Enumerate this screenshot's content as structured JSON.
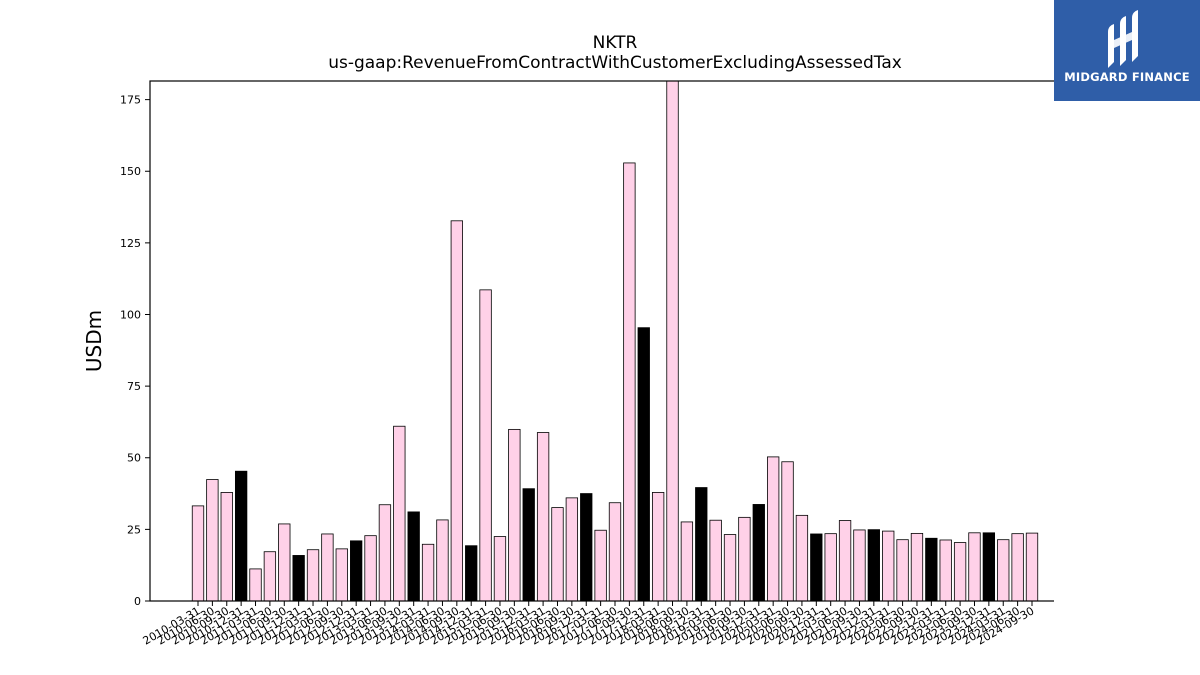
{
  "brand": {
    "name": "MIDGARD FINANCE"
  },
  "chart_data": {
    "type": "bar",
    "title": "NKTR",
    "subtitle": "us-gaap:RevenueFromContractWithCustomerExcludingAssessedTax",
    "ylabel": "USDm",
    "xlabel": "",
    "ylim": [
      0,
      181.5
    ],
    "yticks": [
      0,
      25,
      50,
      75,
      100,
      125,
      150,
      175
    ],
    "grid": false,
    "colors": {
      "quarter": "#ffd1e8",
      "annual": "#000000",
      "edge": "#000000"
    },
    "categories": [
      "2010-03-31",
      "2010-06-30",
      "2010-09-30",
      "2010-12-31",
      "2011-03-31",
      "2011-06-30",
      "2011-09-30",
      "2011-12-31",
      "2012-03-31",
      "2012-06-30",
      "2012-09-30",
      "2012-12-31",
      "2013-03-31",
      "2013-06-30",
      "2013-09-30",
      "2013-12-31",
      "2014-03-31",
      "2014-06-30",
      "2014-09-30",
      "2014-12-31",
      "2015-03-31",
      "2015-06-30",
      "2015-09-30",
      "2015-12-31",
      "2016-03-31",
      "2016-06-30",
      "2016-09-30",
      "2016-12-31",
      "2017-03-31",
      "2017-06-30",
      "2017-09-30",
      "2017-12-31",
      "2018-03-31",
      "2018-06-30",
      "2018-09-30",
      "2018-12-31",
      "2019-03-31",
      "2019-06-30",
      "2019-09-30",
      "2019-12-31",
      "2020-03-31",
      "2020-06-30",
      "2020-09-30",
      "2020-12-31",
      "2021-03-31",
      "2021-06-30",
      "2021-09-30",
      "2021-12-31",
      "2022-03-31",
      "2022-06-30",
      "2022-09-30",
      "2022-12-31",
      "2023-03-31",
      "2023-06-30",
      "2023-09-30",
      "2023-12-31",
      "2024-03-31",
      "2024-06-30",
      "2024-09-30"
    ],
    "values": [
      33.2,
      42.4,
      37.9,
      45.3,
      11.2,
      17.2,
      26.9,
      15.9,
      17.9,
      23.4,
      18.2,
      21.0,
      22.8,
      33.6,
      61.0,
      31.1,
      19.8,
      28.3,
      132.7,
      19.3,
      108.6,
      22.5,
      59.9,
      39.2,
      58.8,
      32.6,
      36.0,
      37.5,
      24.7,
      34.3,
      152.9,
      95.4,
      37.9,
      181.5,
      27.6,
      39.6,
      28.2,
      23.2,
      29.2,
      33.7,
      50.3,
      48.6,
      29.9,
      23.4,
      23.5,
      28.1,
      24.8,
      24.9,
      24.4,
      21.4,
      23.6,
      21.9,
      21.3,
      20.4,
      23.8,
      23.8,
      21.4,
      23.5,
      23.7
    ],
    "highlight": [
      false,
      false,
      false,
      true,
      false,
      false,
      false,
      true,
      false,
      false,
      false,
      true,
      false,
      false,
      false,
      true,
      false,
      false,
      false,
      true,
      false,
      false,
      false,
      true,
      false,
      false,
      false,
      true,
      false,
      false,
      false,
      true,
      false,
      false,
      false,
      true,
      false,
      false,
      false,
      true,
      false,
      false,
      false,
      true,
      false,
      false,
      false,
      true,
      false,
      false,
      false,
      true,
      false,
      false,
      false,
      true,
      false,
      false,
      false
    ]
  }
}
